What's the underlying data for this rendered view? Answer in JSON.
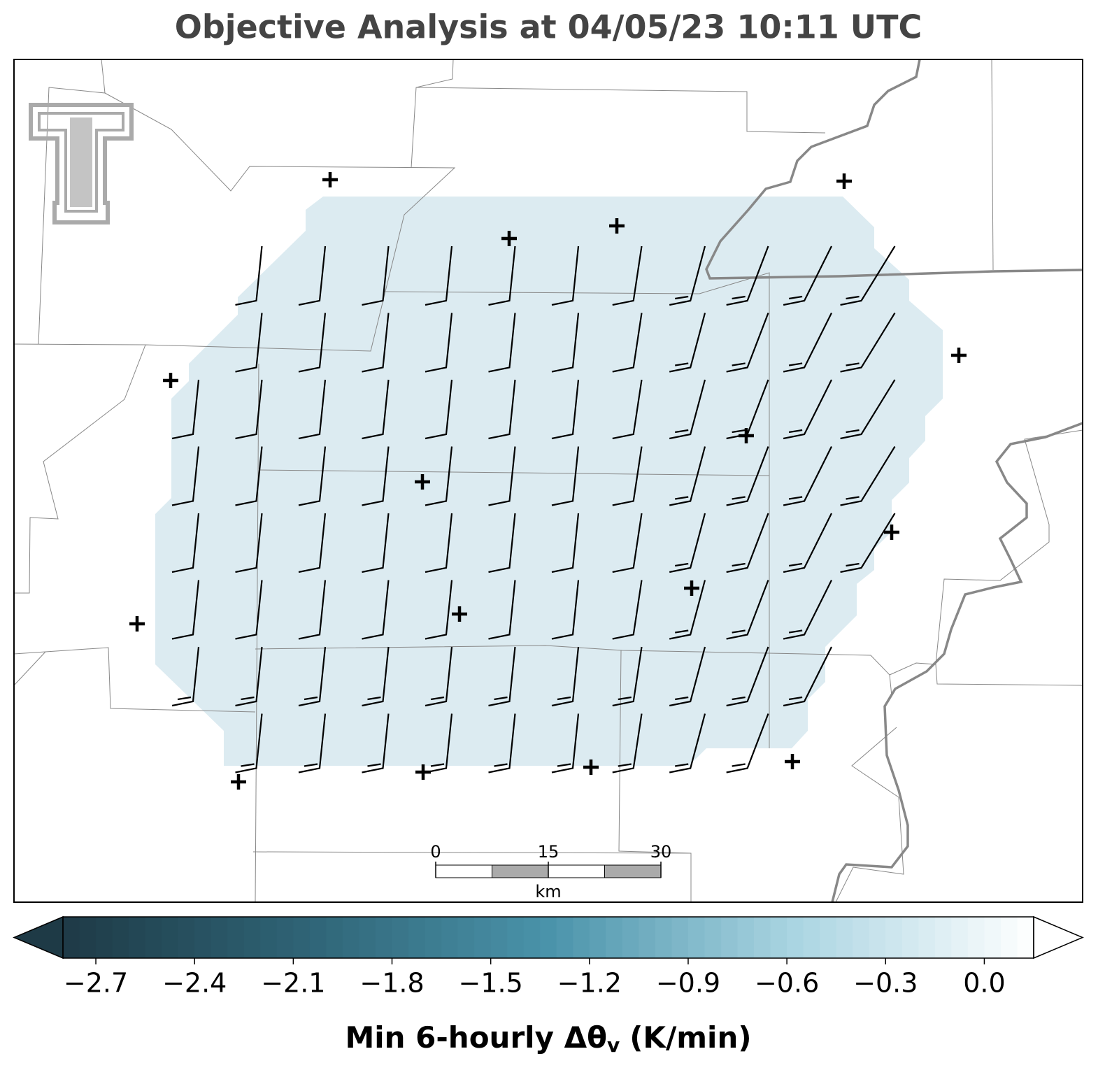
{
  "header": {
    "title": "Objective Analysis at 04/05/23 10:11 UTC"
  },
  "colorbar": {
    "label": {
      "text": "Min 6-hourly Δθ",
      "sub": "v",
      "unit": "(K/min)"
    },
    "lim": [
      -2.8,
      0.15
    ],
    "ticks": [
      {
        "value": -2.7,
        "label": "−2.7"
      },
      {
        "value": -2.4,
        "label": "−2.4"
      },
      {
        "value": -2.1,
        "label": "−2.1"
      },
      {
        "value": -1.8,
        "label": "−1.8"
      },
      {
        "value": -1.5,
        "label": "−1.5"
      },
      {
        "value": -1.2,
        "label": "−1.2"
      },
      {
        "value": -0.9,
        "label": "−0.9"
      },
      {
        "value": -0.6,
        "label": "−0.6"
      },
      {
        "value": -0.3,
        "label": "−0.3"
      },
      {
        "value": 0,
        "label": "0.0"
      }
    ],
    "colors": [
      "#1e3a46",
      "#2f6476",
      "#4a93aa",
      "#a9d4e1",
      "#ffffff"
    ]
  },
  "scale_bar": {
    "lim": [
      0,
      30
    ],
    "ticks": [
      0,
      15,
      30
    ],
    "unit": "km"
  }
}
